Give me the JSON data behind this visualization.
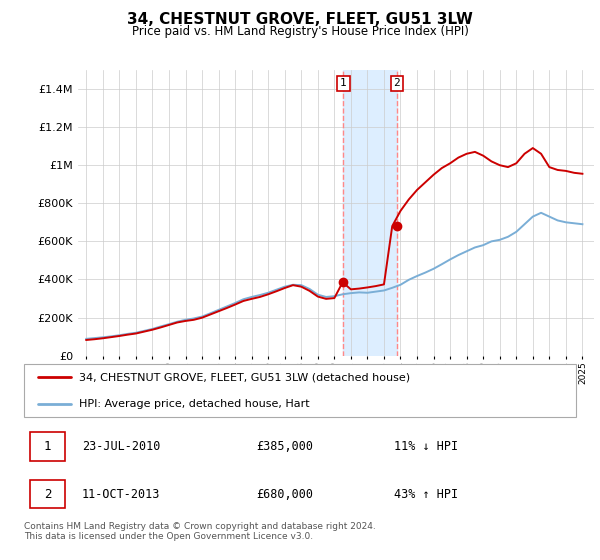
{
  "title": "34, CHESTNUT GROVE, FLEET, GU51 3LW",
  "subtitle": "Price paid vs. HM Land Registry's House Price Index (HPI)",
  "ylim": [
    0,
    1500000
  ],
  "yticks": [
    0,
    200000,
    400000,
    600000,
    800000,
    1000000,
    1200000,
    1400000
  ],
  "ytick_labels": [
    "£0",
    "£200K",
    "£400K",
    "£600K",
    "£800K",
    "£1M",
    "£1.2M",
    "£1.4M"
  ],
  "legend_red": "34, CHESTNUT GROVE, FLEET, GU51 3LW (detached house)",
  "legend_blue": "HPI: Average price, detached house, Hart",
  "sale1_date": "23-JUL-2010",
  "sale1_price": "£385,000",
  "sale1_hpi": "11% ↓ HPI",
  "sale2_date": "11-OCT-2013",
  "sale2_price": "£680,000",
  "sale2_hpi": "43% ↑ HPI",
  "footer": "Contains HM Land Registry data © Crown copyright and database right 2024.\nThis data is licensed under the Open Government Licence v3.0.",
  "background_color": "#ffffff",
  "grid_color": "#cccccc",
  "red_color": "#cc0000",
  "blue_color": "#7aaed6",
  "highlight_color": "#ddeeff",
  "dashed_color": "#ff8888",
  "sale1_x": 2010.55,
  "sale1_y": 385000,
  "sale2_x": 2013.78,
  "sale2_y": 680000,
  "xlim": [
    1994.5,
    2025.7
  ],
  "hpi_years": [
    1995.0,
    1995.5,
    1996.0,
    1996.5,
    1997.0,
    1997.5,
    1998.0,
    1998.5,
    1999.0,
    1999.5,
    2000.0,
    2000.5,
    2001.0,
    2001.5,
    2002.0,
    2002.5,
    2003.0,
    2003.5,
    2004.0,
    2004.5,
    2005.0,
    2005.5,
    2006.0,
    2006.5,
    2007.0,
    2007.5,
    2008.0,
    2008.5,
    2009.0,
    2009.5,
    2010.0,
    2010.5,
    2011.0,
    2011.5,
    2012.0,
    2012.5,
    2013.0,
    2013.5,
    2014.0,
    2014.5,
    2015.0,
    2015.5,
    2016.0,
    2016.5,
    2017.0,
    2017.5,
    2018.0,
    2018.5,
    2019.0,
    2019.5,
    2020.0,
    2020.5,
    2021.0,
    2021.5,
    2022.0,
    2022.5,
    2023.0,
    2023.5,
    2024.0,
    2024.5,
    2025.0
  ],
  "hpi_values": [
    88000,
    92000,
    96000,
    101000,
    107000,
    114000,
    120000,
    130000,
    140000,
    153000,
    165000,
    178000,
    188000,
    195000,
    205000,
    222000,
    240000,
    258000,
    276000,
    296000,
    308000,
    318000,
    330000,
    346000,
    362000,
    372000,
    370000,
    350000,
    320000,
    308000,
    312000,
    322000,
    328000,
    332000,
    330000,
    336000,
    342000,
    356000,
    372000,
    398000,
    418000,
    436000,
    456000,
    480000,
    505000,
    528000,
    548000,
    568000,
    580000,
    600000,
    608000,
    624000,
    650000,
    690000,
    730000,
    750000,
    730000,
    710000,
    700000,
    695000,
    690000
  ],
  "red_years": [
    1995.0,
    1995.5,
    1996.0,
    1996.5,
    1997.0,
    1997.5,
    1998.0,
    1998.5,
    1999.0,
    1999.5,
    2000.0,
    2000.5,
    2001.0,
    2001.5,
    2002.0,
    2002.5,
    2003.0,
    2003.5,
    2004.0,
    2004.5,
    2005.0,
    2005.5,
    2006.0,
    2006.5,
    2007.0,
    2007.5,
    2008.0,
    2008.5,
    2009.0,
    2009.5,
    2010.0,
    2010.5,
    2011.0,
    2011.5,
    2012.0,
    2012.5,
    2013.0,
    2013.5,
    2014.0,
    2014.5,
    2015.0,
    2015.5,
    2016.0,
    2016.5,
    2017.0,
    2017.5,
    2018.0,
    2018.5,
    2019.0,
    2019.5,
    2020.0,
    2020.5,
    2021.0,
    2021.5,
    2022.0,
    2022.5,
    2023.0,
    2023.5,
    2024.0,
    2024.5,
    2025.0
  ],
  "red_values": [
    82000,
    86000,
    91000,
    97000,
    103000,
    110000,
    116000,
    126000,
    136000,
    148000,
    161000,
    174000,
    182000,
    188000,
    199000,
    216000,
    233000,
    250000,
    268000,
    287000,
    298000,
    308000,
    322000,
    338000,
    355000,
    370000,
    362000,
    340000,
    310000,
    298000,
    302000,
    385000,
    348000,
    352000,
    358000,
    365000,
    374000,
    680000,
    760000,
    820000,
    870000,
    910000,
    950000,
    985000,
    1010000,
    1040000,
    1060000,
    1070000,
    1050000,
    1020000,
    1000000,
    990000,
    1010000,
    1060000,
    1090000,
    1060000,
    990000,
    975000,
    970000,
    960000,
    955000
  ]
}
